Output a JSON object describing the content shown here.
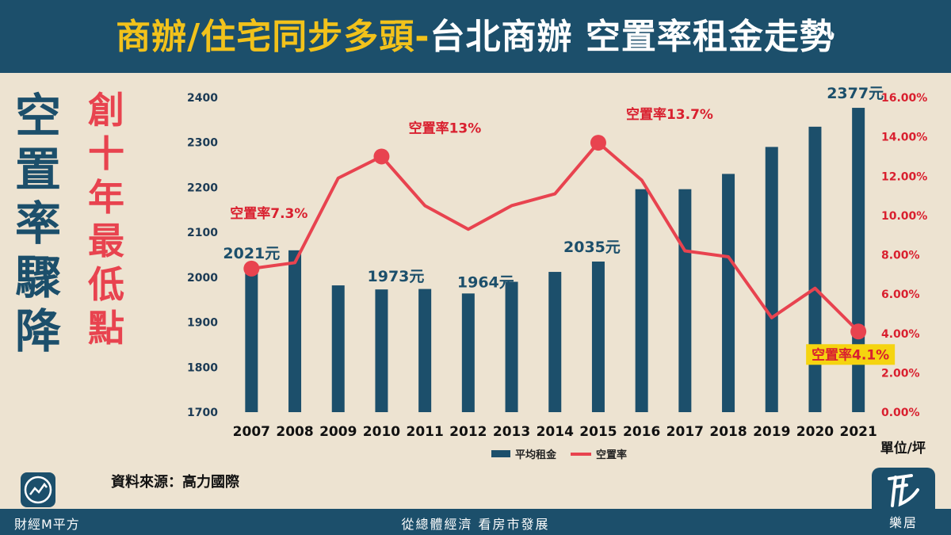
{
  "header": {
    "title_part1": "商辦/住宅同步多頭-",
    "title_part2": "台北商辦 空置率租金走勢"
  },
  "side": {
    "phrase1": [
      "空",
      "置",
      "率",
      "驟",
      "降"
    ],
    "phrase2": [
      "創",
      "十",
      "年",
      "最",
      "低",
      "點"
    ]
  },
  "source": "資料來源：高力國際",
  "footer": {
    "slogan": "從總體經濟 看房市發展",
    "brand_left": "財經M平方",
    "brand_right": "樂居"
  },
  "colors": {
    "bar": "#1c4f6b",
    "line": "#e8434f",
    "header_bg": "#1c4f6b",
    "title_yellow": "#f2c21b",
    "background": "#ede3d1",
    "highlight": "#f5d410"
  },
  "chart_data": {
    "type": "bar+line",
    "categories": [
      "2007",
      "2008",
      "2009",
      "2010",
      "2011",
      "2012",
      "2013",
      "2014",
      "2015",
      "2016",
      "2017",
      "2018",
      "2019",
      "2020",
      "2021"
    ],
    "series": [
      {
        "name": "平均租金",
        "type": "bar",
        "axis": "left",
        "values": [
          2021,
          2060,
          1982,
          1973,
          1974,
          1964,
          1990,
          2012,
          2035,
          2196,
          2196,
          2230,
          2290,
          2335,
          2377
        ]
      },
      {
        "name": "空置率",
        "type": "line",
        "axis": "right",
        "values": [
          7.3,
          7.6,
          11.9,
          13.0,
          10.5,
          9.3,
          10.5,
          11.1,
          13.7,
          11.8,
          8.2,
          7.9,
          4.8,
          6.3,
          4.1
        ]
      }
    ],
    "y_left": {
      "min": 1700,
      "max": 2400,
      "ticks": [
        1700,
        1800,
        1900,
        2000,
        2100,
        2200,
        2300,
        2400
      ]
    },
    "y_right": {
      "min": 0,
      "max": 16,
      "ticks": [
        "0.00%",
        "2.00%",
        "4.00%",
        "6.00%",
        "8.00%",
        "10.00%",
        "12.00%",
        "14.00%",
        "16.00%"
      ]
    },
    "bar_labels": [
      {
        "index": 0,
        "text": "2021元"
      },
      {
        "index": 3,
        "text": "1973元"
      },
      {
        "index": 5,
        "text": "1964元"
      },
      {
        "index": 8,
        "text": "2035元"
      },
      {
        "index": 14,
        "text": "2377元"
      }
    ],
    "rate_labels": [
      {
        "index": 0,
        "text": "空置率7.3%"
      },
      {
        "index": 3,
        "text": "空置率13%"
      },
      {
        "index": 8,
        "text": "空置率13.7%"
      },
      {
        "index": 14,
        "text": "空置率4.1%"
      }
    ],
    "unit": "單位/坪",
    "legend": [
      "平均租金",
      "空置率"
    ],
    "legend_position": "bottom"
  }
}
